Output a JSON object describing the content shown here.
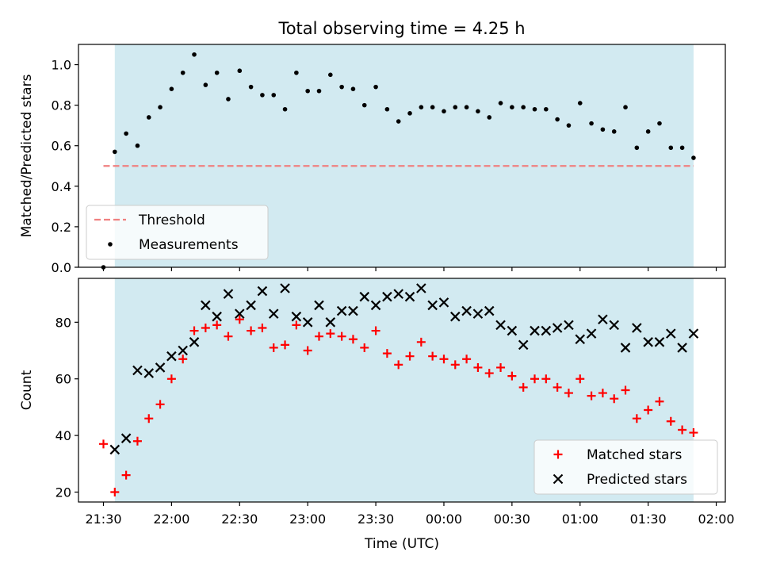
{
  "figure": {
    "title": "Total observing time = 4.25 h",
    "xlabel": "Time (UTC)",
    "x_tick_labels": [
      "21:30",
      "22:00",
      "22:30",
      "23:00",
      "23:30",
      "00:00",
      "00:30",
      "01:00",
      "01:30",
      "02:00"
    ]
  },
  "colors": {
    "shade": "#add8e6",
    "threshold": "#f08080",
    "measurements": "#000000",
    "matched": "#ff0000",
    "predicted": "#000000"
  },
  "chart_data": [
    {
      "type": "scatter",
      "title": "Total observing time = 4.25 h",
      "xlabel": "",
      "ylabel": "Matched/Predicted stars",
      "x_ticks": [
        "21:30",
        "22:00",
        "22:30",
        "23:00",
        "23:30",
        "00:00",
        "00:30",
        "01:00",
        "01:30",
        "02:00"
      ],
      "y_ticks": [
        "0.0",
        "0.2",
        "0.4",
        "0.6",
        "0.8",
        "1.0"
      ],
      "xlim": [
        "21:19",
        "02:04"
      ],
      "ylim": [
        0,
        1.1
      ],
      "shaded_interval": [
        "21:35",
        "01:50"
      ],
      "legend_position": "lower-left",
      "grid": false,
      "series": [
        {
          "name": "Threshold",
          "style": "dashed-line",
          "x": [
            "21:30",
            "01:50"
          ],
          "values": [
            0.5,
            0.5
          ]
        },
        {
          "name": "Measurements",
          "style": "dot",
          "x": [
            "21:30",
            "21:35",
            "21:40",
            "21:45",
            "21:50",
            "21:55",
            "22:00",
            "22:05",
            "22:10",
            "22:15",
            "22:20",
            "22:25",
            "22:30",
            "22:35",
            "22:40",
            "22:45",
            "22:50",
            "22:55",
            "23:00",
            "23:05",
            "23:10",
            "23:15",
            "23:20",
            "23:25",
            "23:30",
            "23:35",
            "23:40",
            "23:45",
            "23:50",
            "23:55",
            "00:00",
            "00:05",
            "00:10",
            "00:15",
            "00:20",
            "00:25",
            "00:30",
            "00:35",
            "00:40",
            "00:45",
            "00:50",
            "00:55",
            "01:00",
            "01:05",
            "01:10",
            "01:15",
            "01:20",
            "01:25",
            "01:30",
            "01:35",
            "01:40",
            "01:45",
            "01:50"
          ],
          "values": [
            0.0,
            0.57,
            0.66,
            0.6,
            0.74,
            0.79,
            0.88,
            0.96,
            1.05,
            0.9,
            0.96,
            0.83,
            0.97,
            0.89,
            0.85,
            0.85,
            0.78,
            0.96,
            0.87,
            0.87,
            0.95,
            0.89,
            0.88,
            0.8,
            0.89,
            0.78,
            0.72,
            0.76,
            0.79,
            0.79,
            0.77,
            0.79,
            0.79,
            0.77,
            0.74,
            0.81,
            0.79,
            0.79,
            0.78,
            0.78,
            0.73,
            0.7,
            0.81,
            0.71,
            0.68,
            0.67,
            0.79,
            0.59,
            0.67,
            0.71,
            0.59,
            0.59,
            0.54
          ]
        }
      ]
    },
    {
      "type": "scatter",
      "title": "",
      "xlabel": "Time (UTC)",
      "ylabel": "Count",
      "x_ticks": [
        "21:30",
        "22:00",
        "22:30",
        "23:00",
        "23:30",
        "00:00",
        "00:30",
        "01:00",
        "01:30",
        "02:00"
      ],
      "y_ticks": [
        "20",
        "40",
        "60",
        "80"
      ],
      "xlim": [
        "21:19",
        "02:04"
      ],
      "ylim": [
        16.5,
        95.5
      ],
      "shaded_interval": [
        "21:35",
        "01:50"
      ],
      "legend_position": "lower-right",
      "grid": false,
      "series": [
        {
          "name": "Matched stars",
          "style": "plus",
          "x": [
            "21:30",
            "21:35",
            "21:40",
            "21:45",
            "21:50",
            "21:55",
            "22:00",
            "22:05",
            "22:10",
            "22:15",
            "22:20",
            "22:25",
            "22:30",
            "22:35",
            "22:40",
            "22:45",
            "22:50",
            "22:55",
            "23:00",
            "23:05",
            "23:10",
            "23:15",
            "23:20",
            "23:25",
            "23:30",
            "23:35",
            "23:40",
            "23:45",
            "23:50",
            "23:55",
            "00:00",
            "00:05",
            "00:10",
            "00:15",
            "00:20",
            "00:25",
            "00:30",
            "00:35",
            "00:40",
            "00:45",
            "00:50",
            "00:55",
            "01:00",
            "01:05",
            "01:10",
            "01:15",
            "01:20",
            "01:25",
            "01:30",
            "01:35",
            "01:40",
            "01:45",
            "01:50"
          ],
          "values": [
            37,
            20,
            26,
            38,
            46,
            51,
            60,
            67,
            77,
            78,
            79,
            75,
            81,
            77,
            78,
            71,
            72,
            79,
            70,
            75,
            76,
            75,
            74,
            71,
            77,
            69,
            65,
            68,
            73,
            68,
            67,
            65,
            67,
            64,
            62,
            64,
            61,
            57,
            60,
            60,
            57,
            55,
            60,
            54,
            55,
            53,
            56,
            46,
            49,
            52,
            45,
            42,
            41
          ]
        },
        {
          "name": "Predicted stars",
          "style": "cross",
          "x": [
            "21:35",
            "21:40",
            "21:45",
            "21:50",
            "21:55",
            "22:00",
            "22:05",
            "22:10",
            "22:15",
            "22:20",
            "22:25",
            "22:30",
            "22:35",
            "22:40",
            "22:45",
            "22:50",
            "22:55",
            "23:00",
            "23:05",
            "23:10",
            "23:15",
            "23:20",
            "23:25",
            "23:30",
            "23:35",
            "23:40",
            "23:45",
            "23:50",
            "23:55",
            "00:00",
            "00:05",
            "00:10",
            "00:15",
            "00:20",
            "00:25",
            "00:30",
            "00:35",
            "00:40",
            "00:45",
            "00:50",
            "00:55",
            "01:00",
            "01:05",
            "01:10",
            "01:15",
            "01:20",
            "01:25",
            "01:30",
            "01:35",
            "01:40",
            "01:45",
            "01:50"
          ],
          "values": [
            35,
            39,
            63,
            62,
            64,
            68,
            70,
            73,
            86,
            82,
            90,
            83,
            86,
            91,
            83,
            92,
            82,
            80,
            86,
            80,
            84,
            84,
            89,
            86,
            89,
            90,
            89,
            92,
            86,
            87,
            82,
            84,
            83,
            84,
            79,
            77,
            72,
            77,
            77,
            78,
            79,
            74,
            76,
            81,
            79,
            71,
            78,
            73,
            73,
            76,
            71,
            76
          ]
        }
      ]
    }
  ]
}
